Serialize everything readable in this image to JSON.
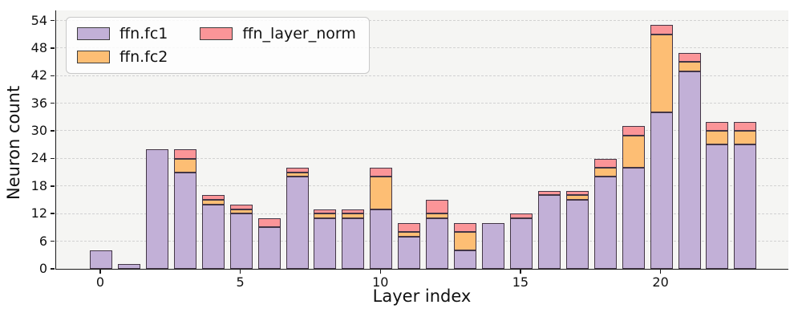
{
  "chart_data": {
    "type": "bar",
    "stacked": true,
    "title": "",
    "xlabel": "Layer index",
    "ylabel": "Neuron count",
    "categories": [
      0,
      1,
      2,
      3,
      4,
      5,
      6,
      7,
      8,
      9,
      10,
      11,
      12,
      13,
      14,
      15,
      16,
      17,
      18,
      19,
      20,
      21,
      22,
      23
    ],
    "series": [
      {
        "name": "ffn.fc1",
        "color": "#c2b0d7",
        "values": [
          4,
          1,
          26,
          21,
          14,
          12,
          9,
          20,
          11,
          11,
          13,
          7,
          11,
          4,
          10,
          11,
          16,
          15,
          20,
          22,
          34,
          43,
          27,
          27
        ]
      },
      {
        "name": "ffn.fc2",
        "color": "#fdbe74",
        "values": [
          0,
          0,
          0,
          3,
          1,
          1,
          0,
          1,
          1,
          1,
          7,
          1,
          1,
          4,
          0,
          0,
          0,
          1,
          2,
          7,
          17,
          2,
          3,
          3
        ]
      },
      {
        "name": "ffn_layer_norm",
        "color": "#fb9598",
        "values": [
          0,
          0,
          0,
          2,
          1,
          1,
          2,
          1,
          1,
          1,
          2,
          2,
          3,
          2,
          0,
          1,
          1,
          1,
          2,
          2,
          2,
          2,
          2,
          2
        ]
      }
    ],
    "y_ticks": [
      0,
      6,
      12,
      18,
      24,
      30,
      36,
      42,
      48,
      54
    ],
    "x_ticks": [
      0,
      5,
      10,
      15,
      20
    ],
    "ylim": [
      0,
      56.2
    ],
    "grid": "horizontal-dashed",
    "legend_position": "upper-left",
    "bar_edge_color": "#433646",
    "plot_background": "#f5f5f3"
  }
}
